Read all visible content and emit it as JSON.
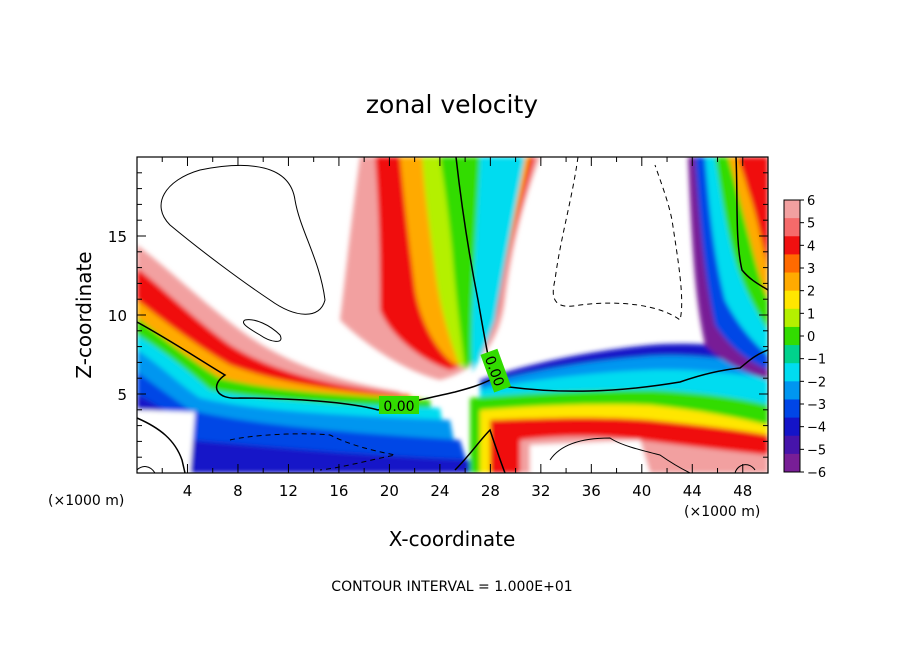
{
  "chart_data": {
    "type": "heatmap",
    "title": "zonal velocity",
    "xlabel": "X-coordinate",
    "ylabel": "Z-coordinate",
    "x_unit_left": "(×1000 m)",
    "x_unit_right": "(×1000 m)",
    "footer": "CONTOUR INTERVAL = 1.000E+01",
    "xlim": [
      0,
      50
    ],
    "ylim": [
      0,
      20
    ],
    "x_ticks": [
      4,
      8,
      12,
      16,
      20,
      24,
      28,
      32,
      36,
      40,
      44,
      48
    ],
    "y_ticks": [
      5,
      10,
      15
    ],
    "contour_labels": [
      {
        "text": "0.00",
        "x": 21,
        "y": 4
      },
      {
        "text": "0.00",
        "x": 28.5,
        "y": 6.5
      }
    ],
    "colorbar": {
      "min": -6,
      "max": 6,
      "ticks": [
        6,
        5,
        4,
        3,
        2,
        1,
        0,
        -1,
        -2,
        -3,
        -4,
        -5,
        -6
      ],
      "tick_labels": [
        "6",
        "5",
        "4",
        "3",
        "2",
        "1",
        "0",
        "−1",
        "−2",
        "−3",
        "−4",
        "−5",
        "−6"
      ],
      "colors": [
        "#f2a0a0",
        "#f56a6a",
        "#f01010",
        "#ff6a00",
        "#ffaa00",
        "#ffe600",
        "#b4f000",
        "#32dc00",
        "#00d28c",
        "#00dcf0",
        "#0096f0",
        "#0046e6",
        "#1414c8",
        "#4614aa",
        "#781e96"
      ]
    }
  }
}
